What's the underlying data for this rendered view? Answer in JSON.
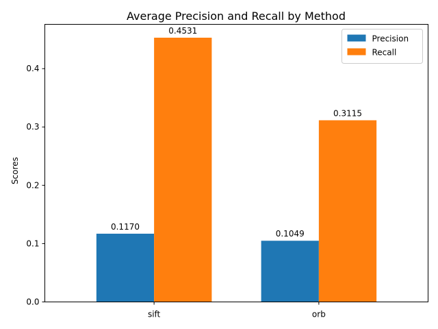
{
  "chart_data": {
    "type": "bar",
    "title": "Average Precision and Recall by Method",
    "xlabel": "",
    "ylabel": "Scores",
    "categories": [
      "sift",
      "orb"
    ],
    "series": [
      {
        "name": "Precision",
        "values": [
          0.117,
          0.1049
        ],
        "labels": [
          "0.1170",
          "0.1049"
        ],
        "color": "#1f77b4"
      },
      {
        "name": "Recall",
        "values": [
          0.4531,
          0.3115
        ],
        "labels": [
          "0.4531",
          "0.3115"
        ],
        "color": "#ff7f0e"
      }
    ],
    "ylim": [
      0,
      0.476
    ],
    "yticks": [
      0.0,
      0.1,
      0.2,
      0.3,
      0.4
    ],
    "ytick_labels": [
      "0.0",
      "0.1",
      "0.2",
      "0.3",
      "0.4"
    ],
    "grid": false,
    "legend": "top-right"
  }
}
